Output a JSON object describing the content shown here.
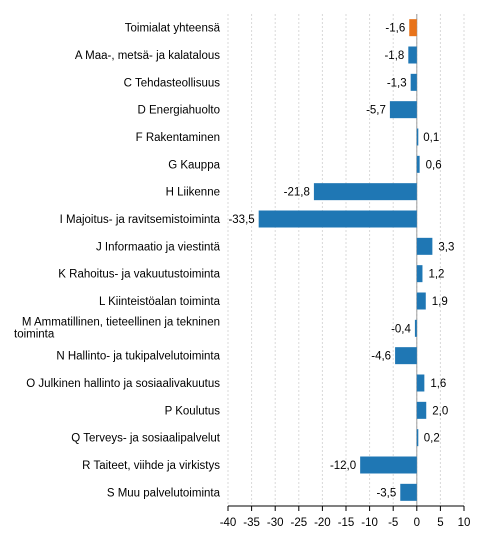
{
  "chart_data": {
    "type": "bar",
    "orientation": "horizontal",
    "categories": [
      "Toimialat yhteensä",
      "A Maa-, metsä- ja kalatalous",
      "C Tehdasteollisuus",
      "D Energiahuolto",
      "F Rakentaminen",
      "G Kauppa",
      "H Liikenne",
      "I Majoitus- ja ravitsemistoiminta",
      "J Informaatio ja viestintä",
      "K Rahoitus- ja vakuutustoiminta",
      "L Kiinteistöalan toiminta",
      [
        "M Ammatillinen, tieteellinen ja tekninen",
        "toiminta"
      ],
      "N Hallinto- ja tukipalvelutoiminta",
      "O Julkinen hallinto ja sosiaalivakuutus",
      "P Koulutus",
      "Q Terveys- ja sosiaalipalvelut",
      "R Taiteet, viihde ja virkistys",
      "S Muu palvelutoiminta"
    ],
    "values": [
      -1.6,
      -1.8,
      -1.3,
      -5.7,
      0.1,
      0.6,
      -21.8,
      -33.5,
      3.3,
      1.2,
      1.9,
      -0.4,
      -4.6,
      1.6,
      2.0,
      0.2,
      -12.0,
      -3.5
    ],
    "value_labels": [
      "-1,6",
      "-1,8",
      "-1,3",
      "-5,7",
      "0,1",
      "0,6",
      "-21,8",
      "-33,5",
      "3,3",
      "1,2",
      "1,9",
      "-0,4",
      "-4,6",
      "1,6",
      "2,0",
      "0,2",
      "-12,0",
      "-3,5"
    ],
    "highlight_index": 0,
    "colors": {
      "default": "#1f77b4",
      "highlight": "#e8731a"
    },
    "xlim": [
      -40,
      10
    ],
    "xticks": [
      -40,
      -35,
      -30,
      -25,
      -20,
      -15,
      -10,
      -5,
      0,
      5,
      10
    ],
    "xtick_labels": [
      "-40",
      "-35",
      "-30",
      "-25",
      "-20",
      "-15",
      "-10",
      "-5",
      "0",
      "5",
      "10"
    ],
    "grid": "vertical dashed",
    "title": "",
    "xlabel": "",
    "ylabel": ""
  }
}
